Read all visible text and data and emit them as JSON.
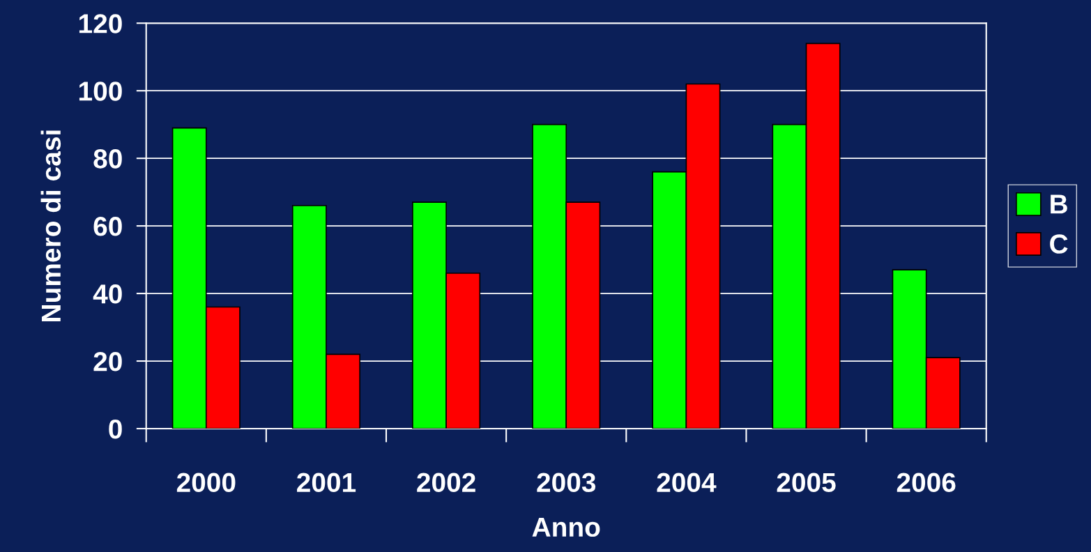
{
  "chart_data": {
    "type": "bar",
    "xlabel": "Anno",
    "ylabel": "Numero di casi",
    "categories": [
      "2000",
      "2001",
      "2002",
      "2003",
      "2004",
      "2005",
      "2006"
    ],
    "series": [
      {
        "name": "B",
        "color": "#00ff00",
        "values": [
          89,
          66,
          67,
          90,
          76,
          90,
          47
        ]
      },
      {
        "name": "C",
        "color": "#ff0000",
        "values": [
          36,
          22,
          46,
          67,
          102,
          114,
          21
        ]
      }
    ],
    "ylim": [
      0,
      120
    ],
    "yticks": [
      0,
      20,
      40,
      60,
      80,
      100,
      120
    ],
    "grid": "y",
    "legend": "right"
  }
}
